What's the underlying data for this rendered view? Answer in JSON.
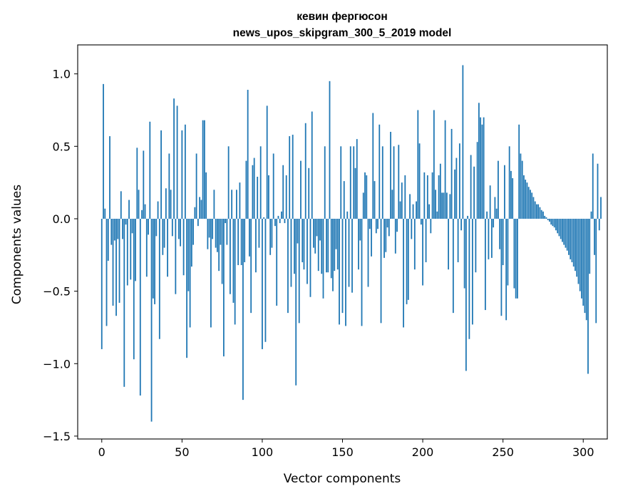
{
  "chart_data": {
    "type": "bar",
    "title": "кевин фергюсон",
    "subtitle": "news_upos_skipgram_300_5_2019 model",
    "xlabel": "Vector components",
    "ylabel": "Components values",
    "xlim": [
      -15,
      315
    ],
    "ylim": [
      -1.52,
      1.2
    ],
    "xticks": [
      0,
      50,
      100,
      150,
      200,
      250,
      300
    ],
    "xtick_labels": [
      "0",
      "50",
      "100",
      "150",
      "200",
      "250",
      "300"
    ],
    "yticks": [
      1.0,
      0.5,
      0.0,
      -0.5,
      -1.0,
      -1.5
    ],
    "ytick_labels": [
      "1.0",
      "0.5",
      "0.0",
      "−0.5",
      "−1.0",
      "−1.5"
    ],
    "grid": false,
    "bar_color": "#1f77b4",
    "series": [
      {
        "name": "components",
        "values": [
          -0.9,
          0.93,
          0.07,
          -0.74,
          -0.29,
          0.57,
          -0.18,
          -0.6,
          -0.15,
          -0.67,
          -0.14,
          -0.58,
          0.19,
          -0.14,
          -1.16,
          -0.04,
          -0.46,
          0.13,
          -0.42,
          -0.1,
          -0.97,
          -0.43,
          0.49,
          0.2,
          -1.22,
          0.06,
          0.47,
          0.1,
          -0.4,
          -0.11,
          0.67,
          -1.4,
          -0.55,
          -0.59,
          -0.12,
          0.12,
          -0.83,
          0.61,
          -0.25,
          -0.2,
          0.21,
          -0.4,
          0.45,
          0.2,
          -0.12,
          0.83,
          -0.52,
          0.78,
          -0.14,
          -0.19,
          0.61,
          -0.39,
          0.65,
          -0.96,
          -0.5,
          -0.75,
          -0.33,
          -0.18,
          0.08,
          0.45,
          -0.05,
          0.15,
          0.13,
          0.68,
          0.68,
          0.32,
          -0.21,
          -0.13,
          -0.75,
          -0.14,
          0.2,
          -0.2,
          -0.23,
          -0.36,
          -0.18,
          -0.45,
          -0.95,
          -0.03,
          -0.18,
          0.5,
          -0.52,
          0.2,
          -0.58,
          -0.73,
          0.2,
          -0.32,
          0.25,
          -0.32,
          -1.25,
          -0.3,
          0.4,
          0.89,
          -0.26,
          -0.65,
          0.37,
          0.42,
          -0.37,
          0.29,
          -0.2,
          0.5,
          -0.9,
          0.01,
          -0.85,
          0.78,
          0.3,
          -0.25,
          -0.2,
          0.45,
          -0.05,
          -0.6,
          0.02,
          -0.03,
          0.05,
          0.37,
          -0.03,
          0.3,
          -0.65,
          0.57,
          -0.47,
          0.58,
          -0.38,
          -1.15,
          -0.17,
          -0.72,
          0.4,
          -0.3,
          -0.35,
          0.66,
          -0.45,
          0.35,
          -0.54,
          0.74,
          -0.2,
          -0.24,
          -0.12,
          -0.36,
          -0.15,
          -0.38,
          -0.55,
          0.5,
          -0.37,
          -0.37,
          0.95,
          -0.41,
          -0.5,
          -0.36,
          -0.21,
          -0.35,
          -0.73,
          0.5,
          -0.65,
          0.26,
          -0.74,
          0.05,
          -0.47,
          0.5,
          -0.51,
          0.5,
          0.35,
          0.55,
          -0.35,
          -0.15,
          -0.74,
          0.18,
          0.32,
          0.3,
          -0.47,
          -0.07,
          -0.26,
          0.73,
          0.26,
          -0.1,
          -0.07,
          0.65,
          -0.72,
          0.5,
          -0.27,
          -0.23,
          -0.06,
          -0.12,
          0.6,
          0.2,
          0.5,
          -0.24,
          -0.09,
          0.51,
          0.12,
          0.25,
          -0.75,
          0.3,
          -0.59,
          -0.56,
          0.17,
          -0.14,
          0.1,
          -0.35,
          0.12,
          0.75,
          0.52,
          -0.04,
          -0.46,
          0.32,
          -0.3,
          0.3,
          0.1,
          -0.1,
          0.32,
          0.75,
          0.2,
          0.05,
          0.3,
          0.38,
          0.18,
          0.18,
          0.68,
          0.18,
          -0.35,
          0.17,
          0.62,
          -0.65,
          0.34,
          0.42,
          -0.3,
          0.52,
          -0.08,
          1.06,
          -0.48,
          -1.05,
          0.02,
          -0.83,
          0.44,
          -0.73,
          0.36,
          -0.37,
          0.53,
          0.8,
          0.7,
          0.65,
          0.7,
          -0.63,
          0.05,
          -0.28,
          0.23,
          -0.27,
          -0.06,
          0.15,
          0.07,
          0.4,
          -0.21,
          -0.67,
          -0.32,
          0.37,
          -0.7,
          -0.46,
          0.5,
          0.33,
          0.28,
          -0.48,
          -0.55,
          -0.55,
          0.65,
          0.45,
          0.4,
          0.3,
          0.27,
          0.25,
          0.22,
          0.2,
          0.18,
          0.15,
          0.12,
          0.1,
          0.1,
          0.08,
          0.06,
          0.05,
          0.02,
          0.01,
          -0.01,
          -0.02,
          -0.04,
          -0.05,
          -0.06,
          -0.08,
          -0.1,
          -0.12,
          -0.14,
          -0.16,
          -0.18,
          -0.2,
          -0.22,
          -0.25,
          -0.28,
          -0.3,
          -0.33,
          -0.36,
          -0.4,
          -0.45,
          -0.5,
          -0.55,
          -0.6,
          -0.65,
          -0.7,
          -1.07,
          -0.38,
          0.05,
          0.45,
          -0.25,
          -0.72,
          0.38,
          -0.08,
          0.15
        ]
      }
    ]
  }
}
